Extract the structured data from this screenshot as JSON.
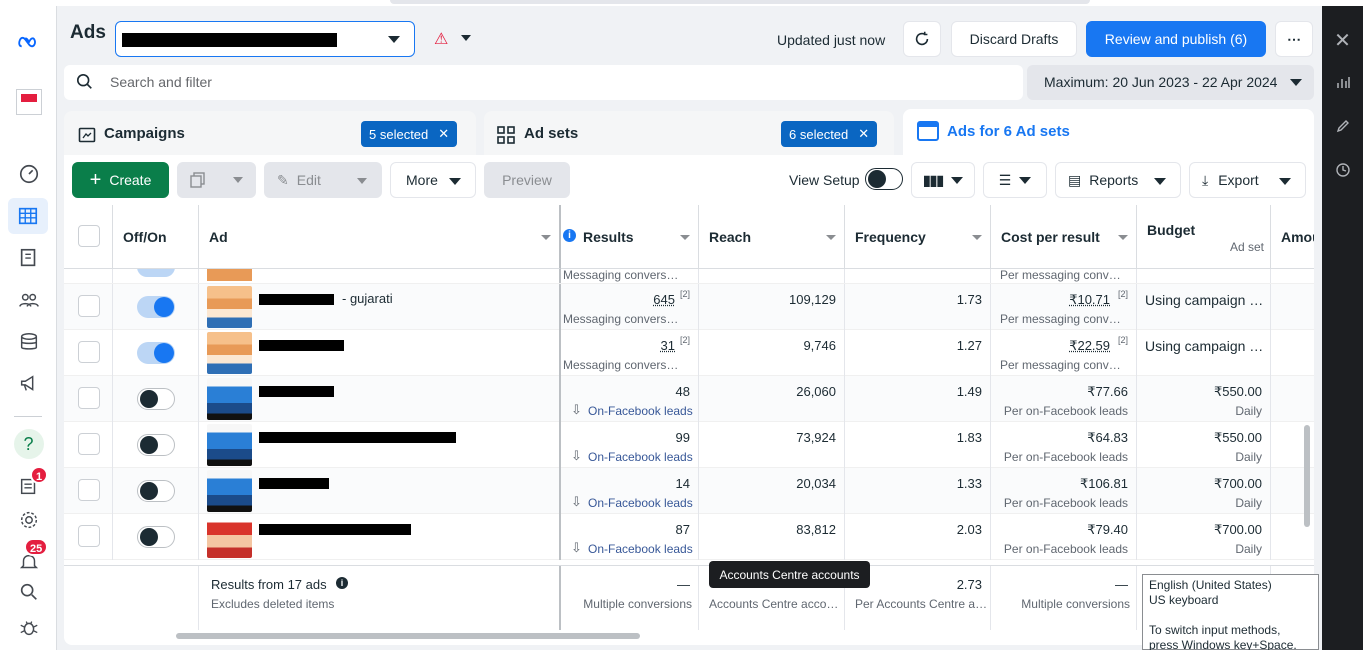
{
  "header": {
    "title": "Ads",
    "updated_text": "Updated just now",
    "discard_label": "Discard Drafts",
    "review_label": "Review and publish (6)",
    "more_icon": "⋯"
  },
  "search": {
    "placeholder": "Search and filter"
  },
  "date_range": "Maximum: 20 Jun 2023 - 22 Apr 2024",
  "tabs": [
    {
      "label": "Campaigns",
      "chip": "5 selected"
    },
    {
      "label": "Ad sets",
      "chip": "6 selected"
    },
    {
      "label": "Ads for 6 Ad sets"
    }
  ],
  "toolbar": {
    "create": "Create",
    "edit": "Edit",
    "more": "More",
    "preview": "Preview",
    "view_setup": "View Setup",
    "reports": "Reports",
    "export": "Export"
  },
  "columns": {
    "offon": "Off/On",
    "ad": "Ad",
    "results": "Results",
    "reach": "Reach",
    "frequency": "Frequency",
    "cpr": "Cost per result",
    "budget": "Budget",
    "budget_sub": "Ad set",
    "amount": "Amou"
  },
  "partial_row": {
    "results_sub": "Messaging convers…",
    "cpr_sub": "Per messaging conv…"
  },
  "rows": [
    {
      "name": "- gujarati",
      "results": "645",
      "results_note": "[2]",
      "results_sub": "Messaging convers…",
      "reach": "109,129",
      "frequency": "1.73",
      "cpr": "₹10.71",
      "cpr_note": "[2]",
      "cpr_sub": "Per messaging conv…",
      "budget": "Using campaign …",
      "budget_sub": "",
      "on": true
    },
    {
      "name": "",
      "results": "31",
      "results_note": "[2]",
      "results_sub": "Messaging convers…",
      "reach": "9,746",
      "frequency": "1.27",
      "cpr": "₹22.59",
      "cpr_note": "[2]",
      "cpr_sub": "Per messaging conv…",
      "budget": "Using campaign …",
      "budget_sub": "",
      "on": true
    },
    {
      "name": "",
      "results": "48",
      "results_note": "",
      "results_sub": "On-Facebook leads",
      "reach": "26,060",
      "frequency": "1.49",
      "cpr": "₹77.66",
      "cpr_note": "",
      "cpr_sub": "Per on-Facebook leads",
      "budget": "₹550.00",
      "budget_sub": "Daily",
      "on": false
    },
    {
      "name": "",
      "results": "99",
      "results_note": "",
      "results_sub": "On-Facebook leads",
      "reach": "73,924",
      "frequency": "1.83",
      "cpr": "₹64.83",
      "cpr_note": "",
      "cpr_sub": "Per on-Facebook leads",
      "budget": "₹550.00",
      "budget_sub": "Daily",
      "on": false
    },
    {
      "name": "",
      "results": "14",
      "results_note": "",
      "results_sub": "On-Facebook leads",
      "reach": "20,034",
      "frequency": "1.33",
      "cpr": "₹106.81",
      "cpr_note": "",
      "cpr_sub": "Per on-Facebook leads",
      "budget": "₹700.00",
      "budget_sub": "Daily",
      "on": false
    },
    {
      "name": "",
      "results": "87",
      "results_note": "",
      "results_sub": "On-Facebook leads",
      "reach": "83,812",
      "frequency": "2.03",
      "cpr": "₹79.40",
      "cpr_note": "",
      "cpr_sub": "Per on-Facebook leads",
      "budget": "₹700.00",
      "budget_sub": "Daily",
      "on": false
    }
  ],
  "footer": {
    "title": "Results from 17 ads",
    "sub": "Excludes deleted items",
    "results": "—",
    "results_sub": "Multiple conversions",
    "reach_sub": "Accounts Centre acco…",
    "frequency": "2.73",
    "frequency_sub": "Per Accounts Centre a…",
    "cpr": "—",
    "cpr_sub": "Multiple conversions"
  },
  "tooltip": "Accounts Centre accounts",
  "ime": {
    "line1": "English (United States)",
    "line2": "US keyboard",
    "line3": "To switch input methods, press Windows key+Space."
  },
  "badges": {
    "notifications_a": "1",
    "notifications_b": "25"
  },
  "left_rail_icons": [
    "meta-logo",
    "account-icon",
    "dashboard-icon",
    "table-icon",
    "pages-icon",
    "audience-icon",
    "database-icon",
    "megaphone-icon",
    "help-icon",
    "ads-report-icon",
    "settings-icon",
    "bell-icon",
    "search-icon",
    "bug-icon"
  ],
  "right_rail_icons": [
    "close-icon",
    "chart-icon",
    "pencil-icon",
    "clock-icon"
  ],
  "colors": {
    "accent": "#1877f2",
    "create": "#0a7e4a",
    "chip": "#0a66c2",
    "badge": "#e41e3f"
  }
}
